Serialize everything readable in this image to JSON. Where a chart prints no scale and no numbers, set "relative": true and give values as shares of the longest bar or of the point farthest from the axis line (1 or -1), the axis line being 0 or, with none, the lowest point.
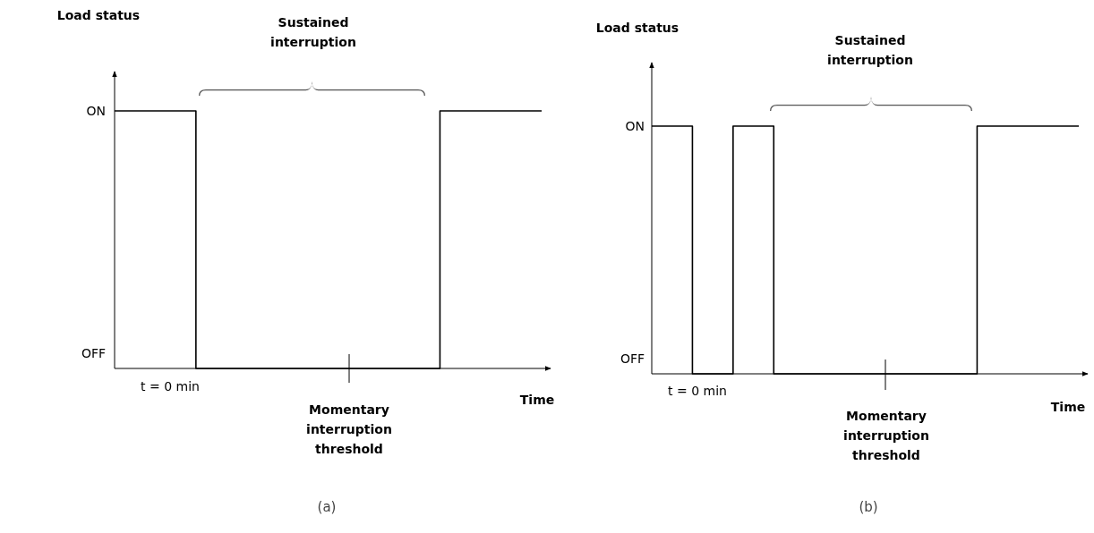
{
  "chart_data": [
    {
      "type": "step",
      "relative": true,
      "xlabel": "Time",
      "ylabel": "Load status",
      "categories": [
        null,
        null,
        null,
        null,
        null,
        null,
        null,
        null,
        null,
        null,
        null,
        null,
        null,
        null,
        null,
        null,
        null,
        null,
        null,
        null,
        null,
        null
      ],
      "values": [
        1,
        1,
        1,
        1,
        0,
        0,
        0,
        0,
        0,
        0,
        0,
        0,
        0,
        0,
        0,
        0,
        1,
        1,
        1,
        1,
        1,
        1
      ],
      "color": "#000000",
      "line_style": "solid",
      "annotations": [
        "ON",
        "OFF",
        "t = 0 min",
        "Sustained interruption",
        "Momentary interruption threshold",
        "(a)"
      ]
    },
    {
      "type": "step",
      "relative": true,
      "xlabel": "Time",
      "ylabel": "Load status",
      "categories": [
        null,
        null,
        null,
        null,
        null,
        null,
        null,
        null,
        null,
        null,
        null,
        null,
        null,
        null,
        null,
        null,
        null,
        null,
        null,
        null,
        null,
        null
      ],
      "values": [
        1,
        1,
        0,
        0,
        1,
        1,
        0,
        0,
        0,
        0,
        0,
        0,
        0,
        0,
        0,
        0,
        1,
        1,
        1,
        1,
        1,
        1
      ],
      "color": "#000000",
      "line_style": "solid",
      "annotations": [
        "ON",
        "OFF",
        "t = 0 min",
        "Sustained interruption",
        "Momentary interruption threshold",
        "(b)"
      ]
    }
  ]
}
